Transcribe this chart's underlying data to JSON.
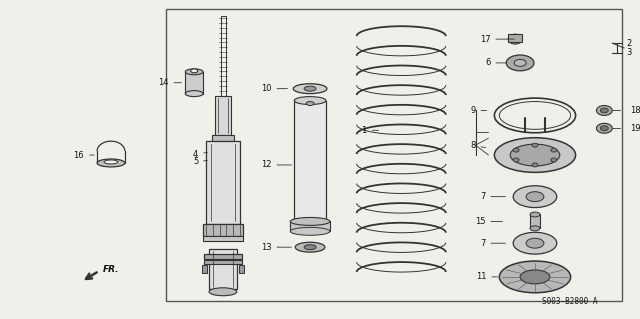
{
  "bg_color": "#f0f0eb",
  "border_color": "#444444",
  "line_color": "#333333",
  "text_color": "#111111",
  "diagram_code": "S003-B2800 A",
  "fr_label": "FR."
}
